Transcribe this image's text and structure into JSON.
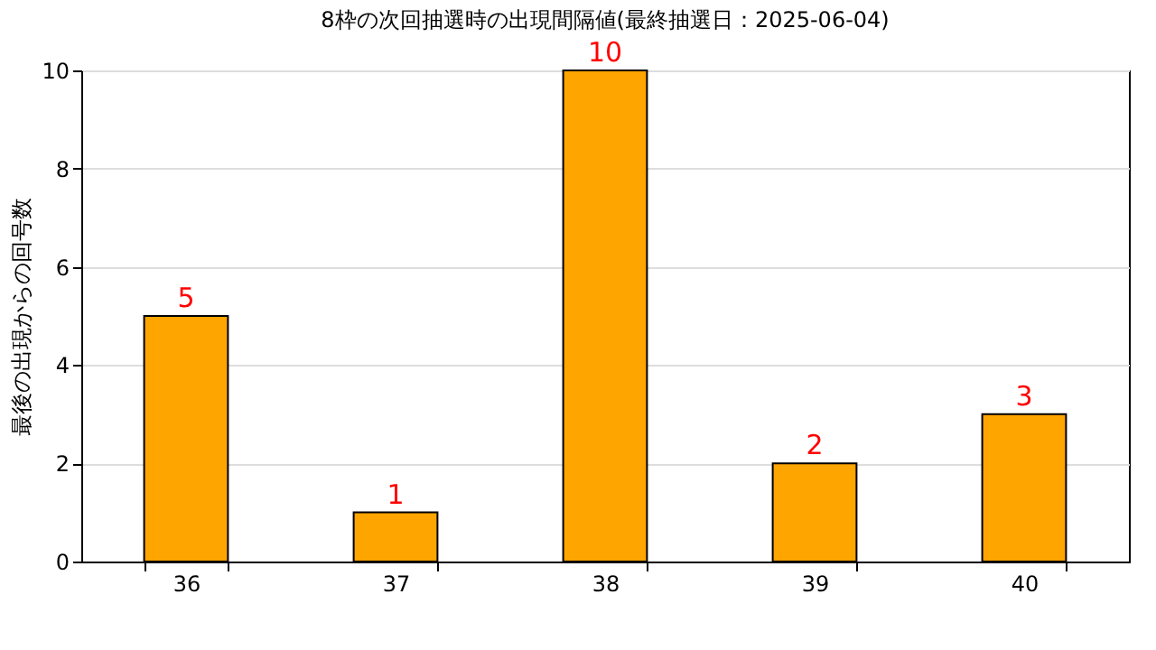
{
  "chart_data": {
    "type": "bar",
    "title": "8枠の次回抽選時の出現間隔値(最終抽選日：2025-06-04)",
    "ylabel": "最後の出現からの回号数",
    "categories": [
      "36",
      "37",
      "38",
      "39",
      "40"
    ],
    "values": [
      5,
      1,
      10,
      2,
      3
    ],
    "color": "#ffa500",
    "ylim": [
      0,
      10
    ],
    "yticks": [
      0,
      2,
      4,
      6,
      8,
      10
    ],
    "grid": "y",
    "data_labels": true
  }
}
